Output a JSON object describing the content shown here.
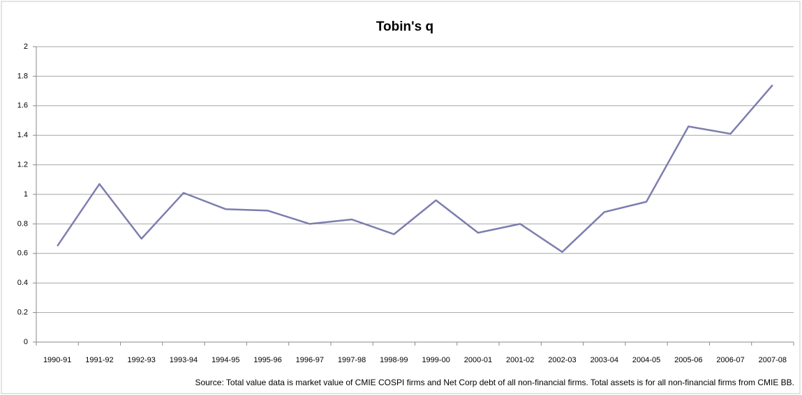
{
  "chart_data": {
    "type": "line",
    "title": "Tobin's q",
    "categories": [
      "1990-91",
      "1991-92",
      "1992-93",
      "1993-94",
      "1994-95",
      "1995-96",
      "1996-97",
      "1997-98",
      "1998-99",
      "1999-00",
      "2000-01",
      "2001-02",
      "2002-03",
      "2003-04",
      "2004-05",
      "2005-06",
      "2006-07",
      "2007-08"
    ],
    "series": [
      {
        "name": "Tobin's q",
        "color": "#7d7daf",
        "values": [
          0.65,
          1.07,
          0.7,
          1.01,
          0.9,
          0.89,
          0.8,
          0.83,
          0.73,
          0.96,
          0.74,
          0.8,
          0.61,
          0.88,
          0.95,
          1.46,
          1.41,
          1.74
        ]
      }
    ],
    "ylim": [
      0,
      2
    ],
    "yticks": [
      0,
      0.2,
      0.4,
      0.6,
      0.8,
      1,
      1.2,
      1.4,
      1.6,
      1.8,
      2
    ],
    "grid": true,
    "note": "Source: Total value data is market value of CMIE COSPI firms and Net Corp debt of all non-financial firms. Total assets is for all non-financial firms from CMIE BB."
  }
}
